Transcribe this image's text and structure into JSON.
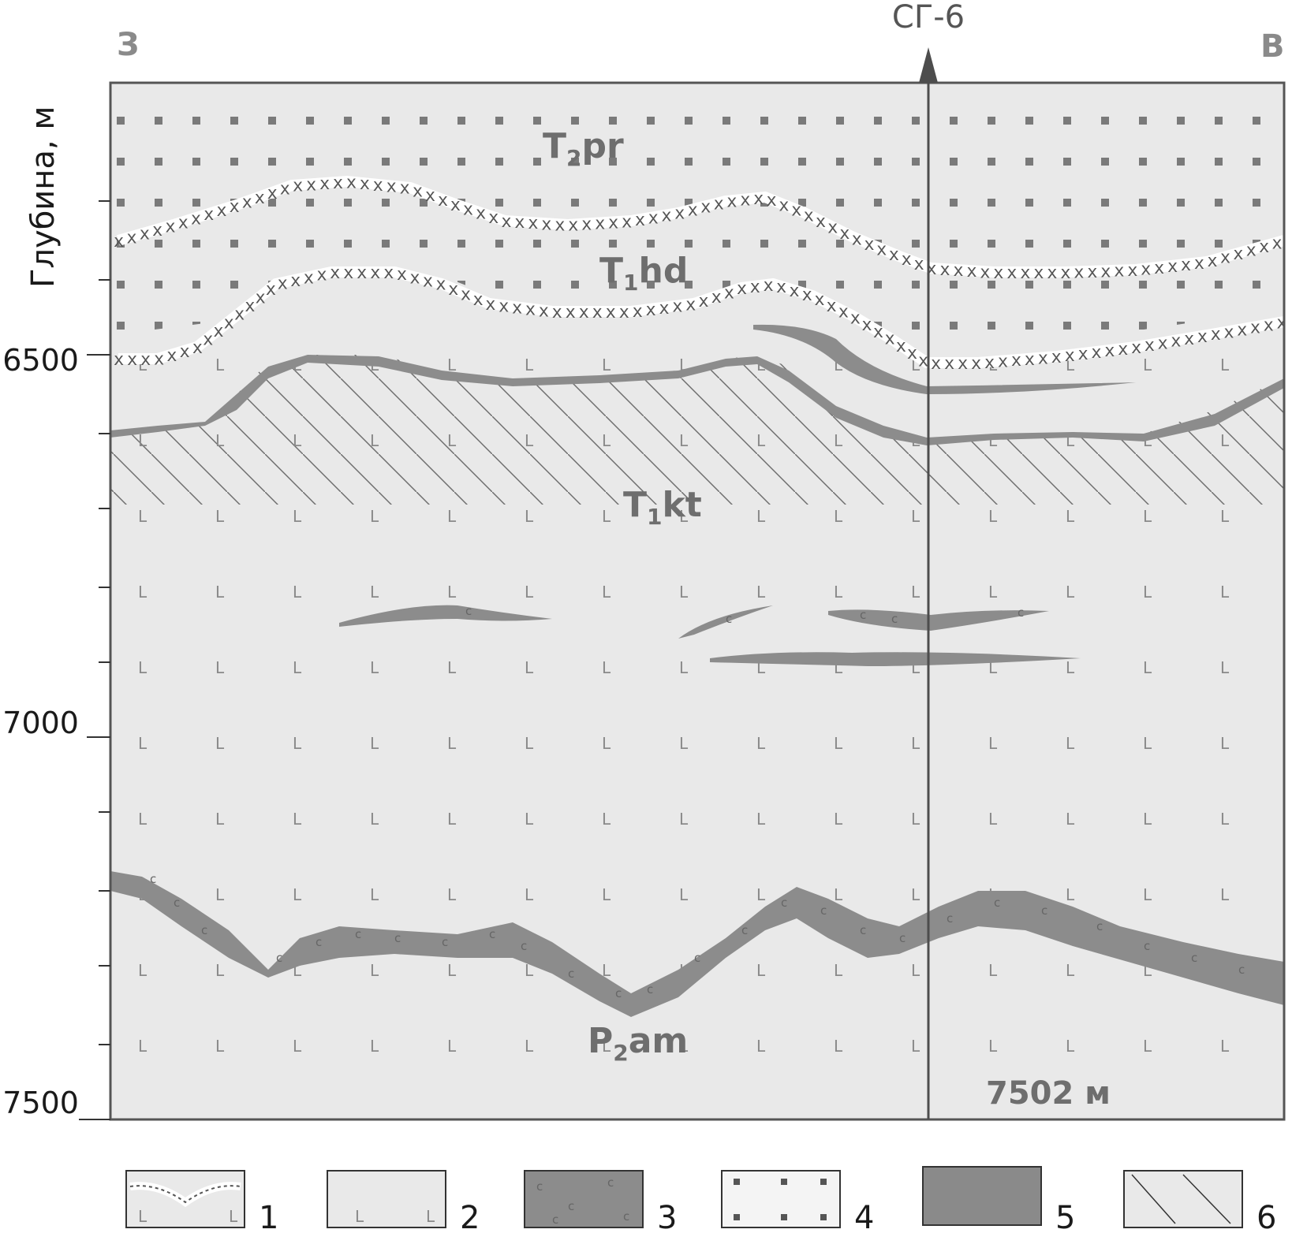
{
  "header": {
    "west_label": "З",
    "east_label": "В",
    "well_label": "СГ-6"
  },
  "axis": {
    "label": "Глубина, м",
    "ticks": [
      "6500",
      "7000",
      "7500"
    ]
  },
  "formations": {
    "t2pr": {
      "main": "T",
      "sub": "2",
      "rest": "pr"
    },
    "t1hd": {
      "main": "T",
      "sub": "1",
      "rest": "hd"
    },
    "t1kt": {
      "main": "T",
      "sub": "1",
      "rest": "kt"
    },
    "p2am": {
      "main": "P",
      "sub": "2",
      "rest": "am"
    }
  },
  "well": {
    "depth_label": "7502 м"
  },
  "legend": {
    "items": [
      {
        "number": "1"
      },
      {
        "number": "2"
      },
      {
        "number": "3"
      },
      {
        "number": "4"
      },
      {
        "number": "5"
      },
      {
        "number": "6"
      }
    ]
  },
  "colors": {
    "section_bg": "#e9e9e9",
    "bands": "#8c8c8c",
    "well_line": "#4d4d4d",
    "text_gray": "#6e6e6e"
  }
}
